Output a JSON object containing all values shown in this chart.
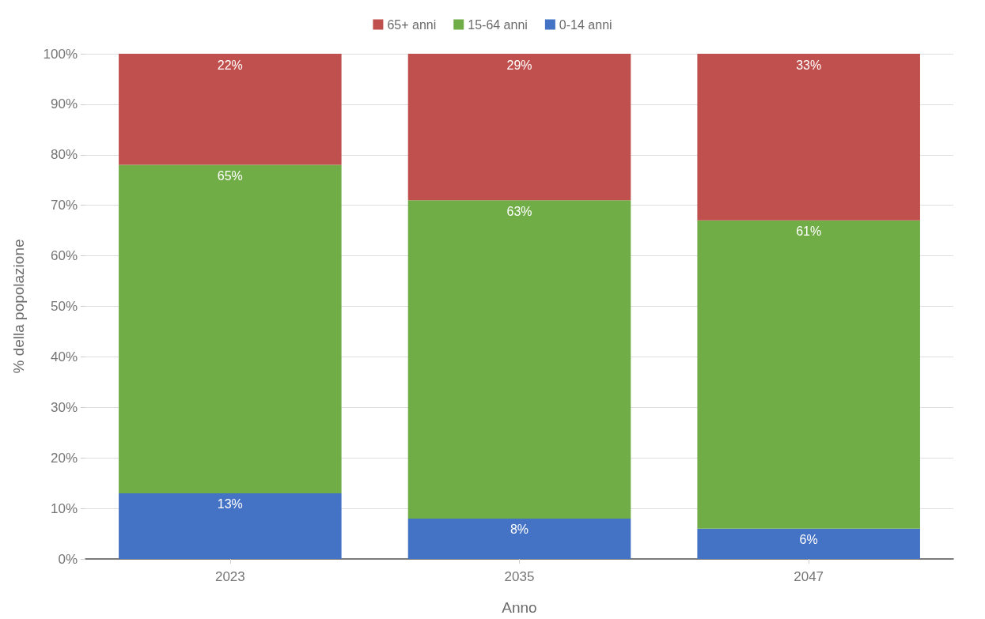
{
  "chart_data": {
    "type": "bar",
    "stacked": true,
    "xlabel": "Anno",
    "ylabel": "% della popolazione",
    "categories": [
      "2023",
      "2035",
      "2047"
    ],
    "series": [
      {
        "name": "0-14 anni",
        "color": "#4472c4",
        "values": [
          13,
          8,
          6
        ],
        "value_labels": [
          "13%",
          "8%",
          "6%"
        ]
      },
      {
        "name": "15-64 anni",
        "color": "#70ad47",
        "values": [
          65,
          63,
          61
        ],
        "value_labels": [
          "65%",
          "63%",
          "61%"
        ]
      },
      {
        "name": "65+ anni",
        "color": "#c0504d",
        "values": [
          22,
          29,
          33
        ],
        "value_labels": [
          "22%",
          "29%",
          "33%"
        ]
      }
    ],
    "ylim": [
      0,
      100
    ],
    "yticks": [
      {
        "value": 0,
        "label": "0%"
      },
      {
        "value": 10,
        "label": "10%"
      },
      {
        "value": 20,
        "label": "20%"
      },
      {
        "value": 30,
        "label": "30%"
      },
      {
        "value": 40,
        "label": "40%"
      },
      {
        "value": 50,
        "label": "50%"
      },
      {
        "value": 60,
        "label": "60%"
      },
      {
        "value": 70,
        "label": "70%"
      },
      {
        "value": 80,
        "label": "80%"
      },
      {
        "value": 90,
        "label": "90%"
      },
      {
        "value": 100,
        "label": "100%"
      }
    ],
    "grid": "y",
    "legend": "top"
  }
}
